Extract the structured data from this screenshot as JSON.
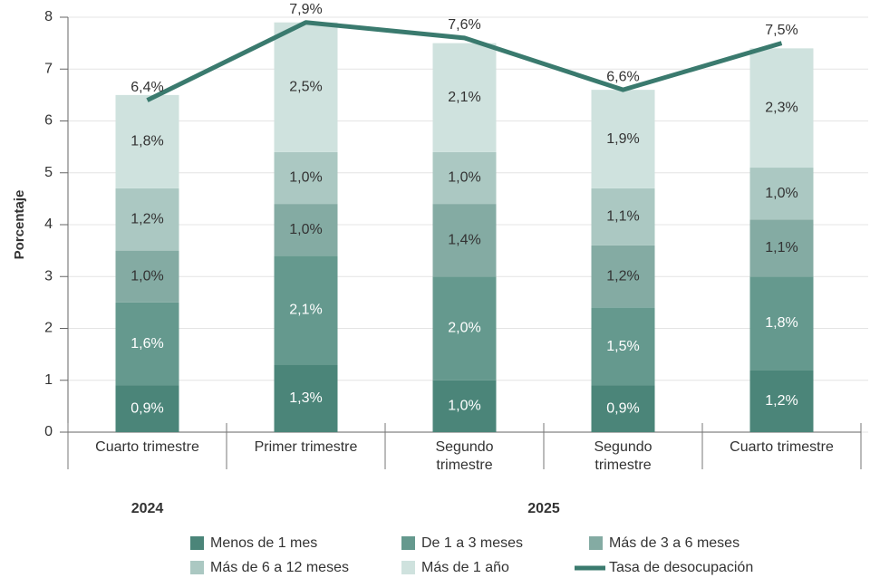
{
  "chart_data": {
    "type": "bar",
    "stacked": true,
    "y_label": "Porcentaje",
    "categories": [
      "Cuarto trimestre",
      "Primer trimestre",
      "Segundo trimestre",
      "Segundo trimestre",
      "Cuarto trimestre"
    ],
    "groups": [
      "2024",
      "2025"
    ],
    "ylim": [
      0,
      8
    ],
    "yticks": [
      0,
      1,
      2,
      3,
      4,
      5,
      6,
      7,
      8
    ],
    "grid": true,
    "series": [
      {
        "name": "Menos de 1 mes",
        "color": "#4b8579",
        "label_color": "#ffffff",
        "values": [
          0.9,
          1.3,
          1.0,
          0.9,
          1.2
        ],
        "value_labels": [
          "0,9%",
          "1,3%",
          "1,0%",
          "0,9%",
          "1,2%"
        ]
      },
      {
        "name": "De 1 a 3 meses",
        "color": "#65998e",
        "label_color": "#ffffff",
        "values": [
          1.6,
          2.1,
          2.0,
          1.5,
          1.8
        ],
        "value_labels": [
          "1,6%",
          "2,1%",
          "2,0%",
          "1,5%",
          "1,8%"
        ]
      },
      {
        "name": "Más de 3 a 6 meses",
        "color": "#84aba3",
        "label_color": "#333333",
        "values": [
          1.0,
          1.0,
          1.4,
          1.2,
          1.1
        ],
        "value_labels": [
          "1,0%",
          "1,0%",
          "1,4%",
          "1,2%",
          "1,1%"
        ]
      },
      {
        "name": "Más de 6 a 12 meses",
        "color": "#abc8c2",
        "label_color": "#333333",
        "values": [
          1.2,
          1.0,
          1.0,
          1.1,
          1.0
        ],
        "value_labels": [
          "1,2%",
          "1,0%",
          "1,0%",
          "1,1%",
          "1,0%"
        ]
      },
      {
        "name": "Más de 1 año",
        "color": "#cfe2de",
        "label_color": "#333333",
        "values": [
          1.8,
          2.5,
          2.1,
          1.9,
          2.3
        ],
        "value_labels": [
          "1,8%",
          "2,5%",
          "2,1%",
          "1,9%",
          "2,3%"
        ]
      }
    ],
    "line": {
      "name": "Tasa de desocupación",
      "color": "#3a7a6e",
      "values": [
        6.4,
        7.9,
        7.6,
        6.6,
        7.5
      ],
      "value_labels": [
        "6,4%",
        "7,9%",
        "7,6%",
        "6,6%",
        "7,5%"
      ]
    }
  }
}
